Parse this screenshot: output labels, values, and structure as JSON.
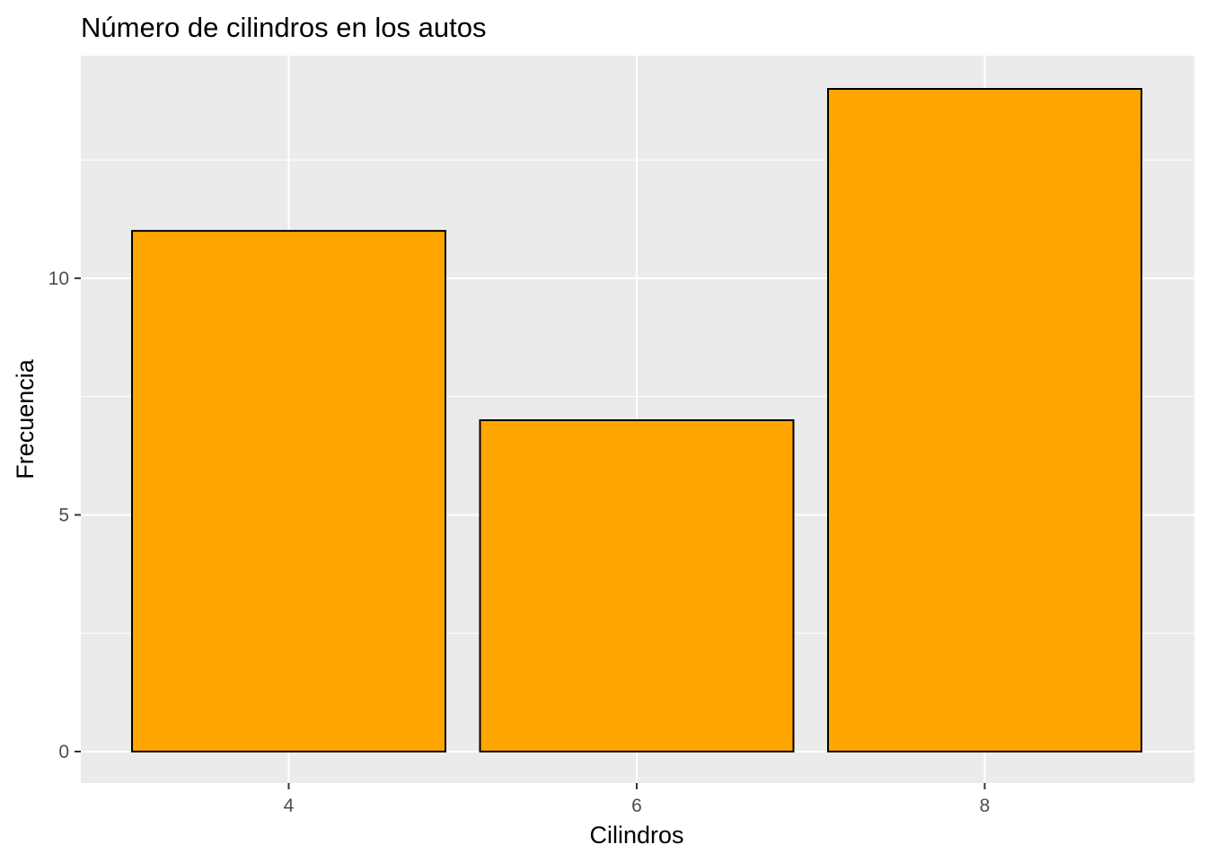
{
  "chart_data": {
    "type": "bar",
    "title": "Número de cilindros en los autos",
    "xlabel": "Cilindros",
    "ylabel": "Frecuencia",
    "categories": [
      "4",
      "6",
      "8"
    ],
    "values": [
      11,
      7,
      14
    ],
    "ylim": [
      0,
      14.7
    ],
    "yticks": [
      0,
      5,
      10
    ],
    "yticks_labels": [
      "0",
      "5",
      "10"
    ],
    "grid": true,
    "colors": {
      "bar_fill": "#FFA500",
      "bar_stroke": "#000000",
      "panel_background": "#EBEBEB",
      "grid": "#FFFFFF",
      "tick_label": "#4D4D4D"
    }
  }
}
